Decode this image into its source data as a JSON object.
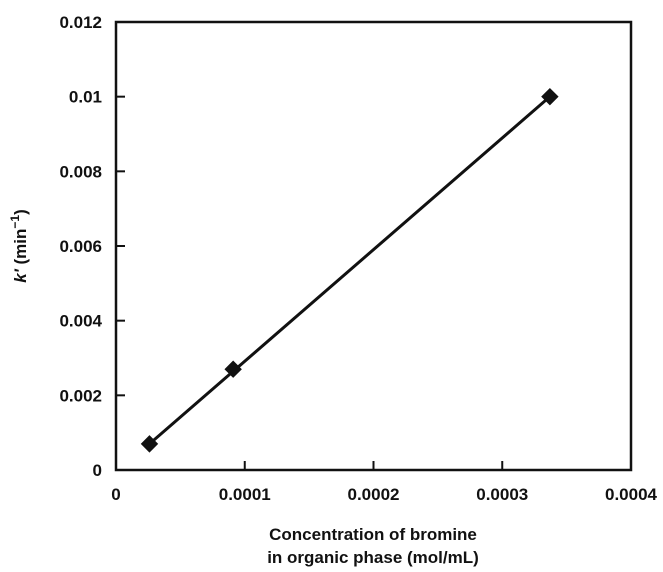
{
  "chart_data": {
    "type": "scatter",
    "xlabel_lines": [
      "Concentration of bromine",
      "in organic phase (mol/mL)"
    ],
    "ylabel_prefix": "k′",
    "ylabel_unit": " (min",
    "ylabel_exponent": "−1",
    "ylabel_close": ")",
    "xlim": [
      0,
      0.0004
    ],
    "ylim": [
      0,
      0.012
    ],
    "x_ticks": [
      0,
      0.0001,
      0.0002,
      0.0003,
      0.0004
    ],
    "x_tick_labels": [
      "0",
      "0.0001",
      "0.0002",
      "0.0003",
      "0.0004"
    ],
    "y_ticks": [
      0,
      0.002,
      0.004,
      0.006,
      0.008,
      0.01,
      0.012
    ],
    "y_tick_labels": [
      "0",
      "0.002",
      "0.004",
      "0.006",
      "0.008",
      "0.01",
      "0.012"
    ],
    "grid": false,
    "series": [
      {
        "marker": "diamond",
        "fit_line": true,
        "x": [
          2.6e-05,
          9.1e-05,
          0.000337
        ],
        "y": [
          0.0007,
          0.0027,
          0.01
        ]
      }
    ],
    "colors": {
      "ink": "#111111",
      "background": "#ffffff"
    }
  }
}
